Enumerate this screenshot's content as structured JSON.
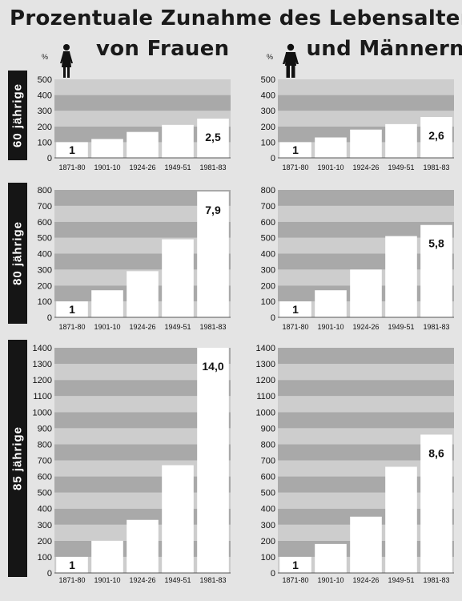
{
  "title": {
    "line1": "Prozentuale Zunahme des Lebensalters",
    "line2_women": "von Frauen",
    "line2_men": "und Männern:"
  },
  "unit_label": "%",
  "colors": {
    "band_dark": "#a9a9a9",
    "band_light": "#cdcdcd",
    "bar": "#ffffff",
    "row_label_bg": "#151515"
  },
  "icons": {
    "women": "woman-figure-icon",
    "men": "man-figure-icon"
  },
  "rows": [
    {
      "label": "60 jährige"
    },
    {
      "label": "80 jährige"
    },
    {
      "label": "85 jährige"
    }
  ],
  "chart_data": [
    {
      "type": "bar",
      "group": "Frauen",
      "row": "60 jährige",
      "categories": [
        "1871-80",
        "1901-10",
        "1924-26",
        "1949-51",
        "1981-83"
      ],
      "values": [
        100,
        120,
        165,
        210,
        250
      ],
      "bar_labels": [
        "1",
        "",
        "",
        "",
        "2,5"
      ],
      "ylim": [
        0,
        500
      ],
      "yticks": [
        0,
        100,
        200,
        300,
        400,
        500
      ]
    },
    {
      "type": "bar",
      "group": "Männer",
      "row": "60 jährige",
      "categories": [
        "1871-80",
        "1901-10",
        "1924-26",
        "1949-51",
        "1981-83"
      ],
      "values": [
        100,
        130,
        180,
        215,
        260
      ],
      "bar_labels": [
        "1",
        "",
        "",
        "",
        "2,6"
      ],
      "ylim": [
        0,
        500
      ],
      "yticks": [
        0,
        100,
        200,
        300,
        400,
        500
      ]
    },
    {
      "type": "bar",
      "group": "Frauen",
      "row": "80 jährige",
      "categories": [
        "1871-80",
        "1901-10",
        "1924-26",
        "1949-51",
        "1981-83"
      ],
      "values": [
        100,
        170,
        290,
        490,
        790
      ],
      "bar_labels": [
        "1",
        "",
        "",
        "",
        "7,9"
      ],
      "ylim": [
        0,
        800
      ],
      "yticks": [
        0,
        100,
        200,
        300,
        400,
        500,
        600,
        700,
        800
      ]
    },
    {
      "type": "bar",
      "group": "Männer",
      "row": "80 jährige",
      "categories": [
        "1871-80",
        "1901-10",
        "1924-26",
        "1949-51",
        "1981-83"
      ],
      "values": [
        100,
        170,
        300,
        510,
        580
      ],
      "bar_labels": [
        "1",
        "",
        "",
        "",
        "5,8"
      ],
      "ylim": [
        0,
        800
      ],
      "yticks": [
        0,
        100,
        200,
        300,
        400,
        500,
        600,
        700,
        800
      ]
    },
    {
      "type": "bar",
      "group": "Frauen",
      "row": "85 jährige",
      "categories": [
        "1871-80",
        "1901-10",
        "1924-26",
        "1949-51",
        "1981-83"
      ],
      "values": [
        100,
        200,
        330,
        670,
        1400
      ],
      "bar_labels": [
        "1",
        "",
        "",
        "",
        "14,0"
      ],
      "ylim": [
        0,
        1400
      ],
      "yticks": [
        0,
        100,
        200,
        300,
        400,
        500,
        600,
        700,
        800,
        900,
        1000,
        1100,
        1200,
        1300,
        1400
      ]
    },
    {
      "type": "bar",
      "group": "Männer",
      "row": "85 jährige",
      "categories": [
        "1871-80",
        "1901-10",
        "1924-26",
        "1949-51",
        "1981-83"
      ],
      "values": [
        100,
        180,
        350,
        660,
        860
      ],
      "bar_labels": [
        "1",
        "",
        "",
        "",
        "8,6"
      ],
      "ylim": [
        0,
        1400
      ],
      "yticks": [
        0,
        100,
        200,
        300,
        400,
        500,
        600,
        700,
        800,
        900,
        1000,
        1100,
        1200,
        1300,
        1400
      ]
    }
  ]
}
